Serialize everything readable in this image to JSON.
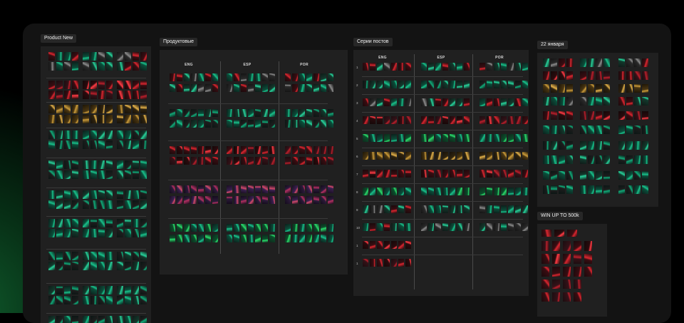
{
  "canvas": {
    "frames": {
      "product_new": {
        "label": "Product New"
      },
      "products": {
        "label": "Продуктовые",
        "columns": [
          "ENG",
          "ESP",
          "POR"
        ]
      },
      "series": {
        "label": "Серии постов",
        "columns": [
          "ENG",
          "ESP",
          "POR"
        ],
        "rows": [
          "1",
          "2",
          "3",
          "4",
          "5",
          "6",
          "7",
          "8",
          "9",
          "10",
          "1",
          "1"
        ]
      },
      "jan22": {
        "label": "22 января"
      },
      "win": {
        "label": "WIN UP TO 500k"
      }
    }
  },
  "colors": {
    "background": "#000000",
    "canvas": "#131313",
    "frame": "#202020",
    "accent_green": "#19c08a",
    "accent_red": "#d8262f"
  }
}
